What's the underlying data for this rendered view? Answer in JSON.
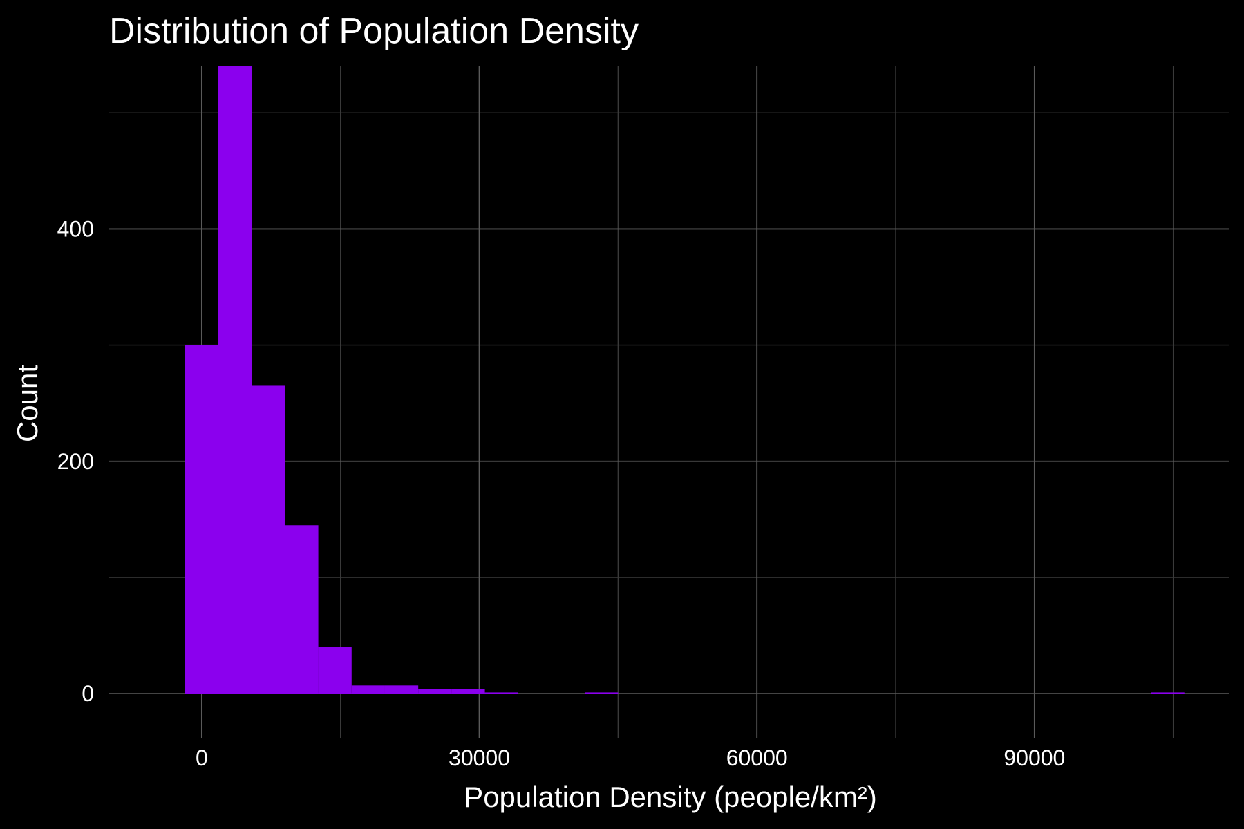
{
  "chart_data": {
    "type": "bar",
    "title": "Distribution of Population Density",
    "xlabel": "Population Density (people/km²)",
    "ylabel": "Count",
    "bar_color": "#8B00EE",
    "background_color": "#000000",
    "grid": true,
    "legend": "none",
    "xlim": [
      -10000,
      111000
    ],
    "ylim": [
      -38,
      540
    ],
    "x_ticks": [
      0,
      30000,
      60000,
      90000
    ],
    "x_tick_labels": [
      "0",
      "30000",
      "60000",
      "90000"
    ],
    "x_minor_ticks": [
      15000,
      45000,
      75000,
      105000
    ],
    "y_ticks": [
      0,
      200,
      400
    ],
    "y_tick_labels": [
      "0",
      "200",
      "400"
    ],
    "y_minor_ticks": [
      100,
      300,
      500
    ],
    "bin_width": 3600,
    "bins": [
      {
        "x": 0,
        "count": 300
      },
      {
        "x": 3600,
        "count": 540
      },
      {
        "x": 7200,
        "count": 265
      },
      {
        "x": 10800,
        "count": 145
      },
      {
        "x": 14400,
        "count": 40
      },
      {
        "x": 18000,
        "count": 7
      },
      {
        "x": 21600,
        "count": 7
      },
      {
        "x": 25200,
        "count": 4
      },
      {
        "x": 28800,
        "count": 4
      },
      {
        "x": 32400,
        "count": 1
      },
      {
        "x": 36000,
        "count": 0
      },
      {
        "x": 39600,
        "count": 0
      },
      {
        "x": 43200,
        "count": 1
      },
      {
        "x": 46800,
        "count": 0
      },
      {
        "x": 104400,
        "count": 1
      }
    ]
  }
}
